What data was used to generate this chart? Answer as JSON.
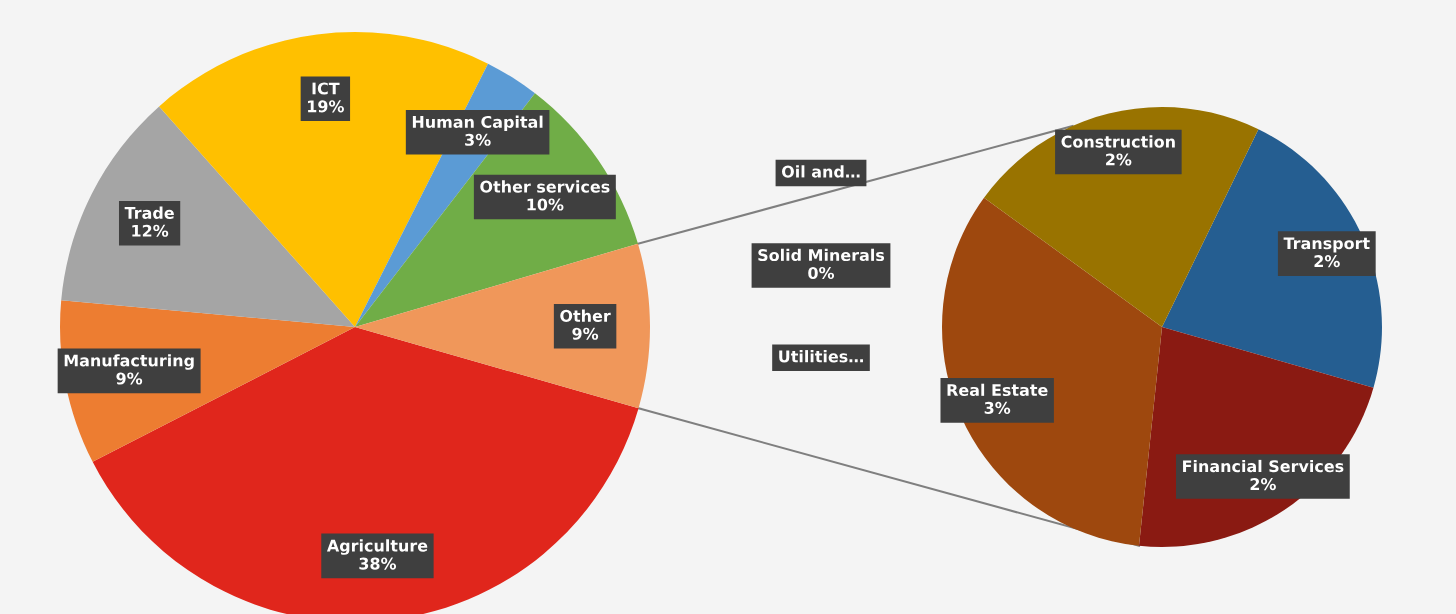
{
  "chart_data": [
    {
      "type": "pie",
      "categories": [
        "Agriculture",
        "Manufacturing",
        "Trade",
        "ICT",
        "Human Capital",
        "Other services",
        "Other"
      ],
      "values": [
        38,
        9,
        12,
        19,
        3,
        10,
        9
      ],
      "colors": [
        "#e0261c",
        "#ed7d31",
        "#a5a5a5",
        "#ffc000",
        "#5b9bd5",
        "#70ad47",
        "#f0975a"
      ],
      "value_labels": [
        "38%",
        "9%",
        "12%",
        "19%",
        "3%",
        "10%",
        "9%"
      ]
    },
    {
      "type": "pie",
      "categories": [
        "Transport",
        "Financial Services",
        "Real Estate",
        "Utilities…",
        "Solid Minerals",
        "Oil and…",
        "Construction"
      ],
      "values": [
        2,
        2,
        3,
        0,
        0,
        0,
        2
      ],
      "colors": [
        "#255e91",
        "#8a1a12",
        "#9e480e",
        "#636363",
        "#264478",
        "#43682b",
        "#997300"
      ],
      "value_labels": [
        "2%",
        "2%",
        "3%",
        null,
        "0%",
        null,
        "2%"
      ]
    }
  ]
}
